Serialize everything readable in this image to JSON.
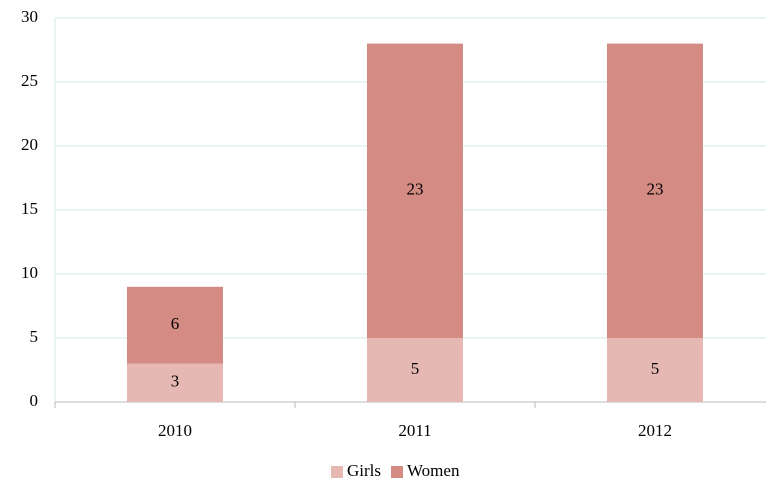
{
  "chart_data": {
    "type": "stacked_bar",
    "categories": [
      "2010",
      "2011",
      "2012"
    ],
    "series": [
      {
        "name": "Girls",
        "color": "#e6b8b4",
        "values": [
          3,
          5,
          5
        ]
      },
      {
        "name": "Women",
        "color": "#d38b84",
        "values": [
          6,
          23,
          23
        ]
      }
    ],
    "ylim": [
      0,
      30
    ],
    "yticks": [
      0,
      5,
      10,
      15,
      20,
      25,
      30
    ],
    "grid": true,
    "legend": "bottom"
  }
}
